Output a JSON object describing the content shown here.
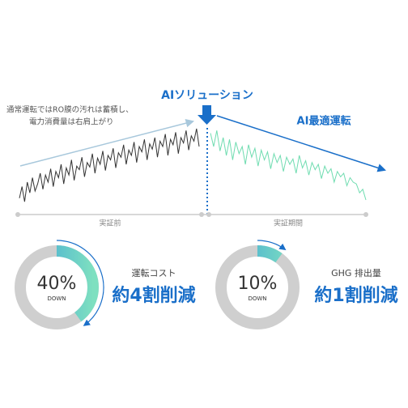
{
  "annotation_lines": [
    "通常運転ではRO膜の汚れは蓄積し、",
    "電力消費量は右肩上がり"
  ],
  "ai_solution_label": "AIソリューション",
  "ai_optimal_label": "AI最適運転",
  "phase_labels": [
    "実証前",
    "実証期間"
  ],
  "before_values": [
    12,
    25,
    8,
    30,
    18,
    35,
    20,
    28,
    40,
    22,
    38,
    30,
    45,
    25,
    42,
    35,
    50,
    28,
    46,
    38,
    55,
    32,
    48,
    44,
    58,
    36,
    52,
    47,
    62,
    40,
    57,
    50,
    65,
    43,
    60,
    55,
    68,
    46,
    63,
    58,
    72,
    50,
    66,
    60,
    75,
    52,
    70,
    64,
    78,
    55,
    73,
    67,
    80,
    58,
    76,
    70,
    84,
    60,
    78,
    72,
    86,
    62,
    80,
    74,
    88,
    66,
    82,
    76,
    90,
    70
  ],
  "after_values": [
    85,
    70,
    88,
    65,
    80,
    60,
    78,
    55,
    75,
    62,
    70,
    50,
    72,
    58,
    68,
    48,
    66,
    55,
    64,
    45,
    62,
    52,
    60,
    42,
    58,
    50,
    56,
    40,
    60,
    46,
    54,
    38,
    52,
    44,
    50,
    34,
    48,
    40,
    45,
    30,
    42,
    36,
    40,
    26,
    35,
    30,
    28,
    18,
    22,
    10
  ],
  "donuts": [
    {
      "value": 40,
      "value_label": "40%",
      "sub": "DOWN",
      "caption": "運転コスト",
      "headline": "約4割削減"
    },
    {
      "value": 10,
      "value_label": "10%",
      "sub": "DOWN",
      "caption": "GHG 排出量",
      "headline": "約1割削減"
    }
  ]
}
